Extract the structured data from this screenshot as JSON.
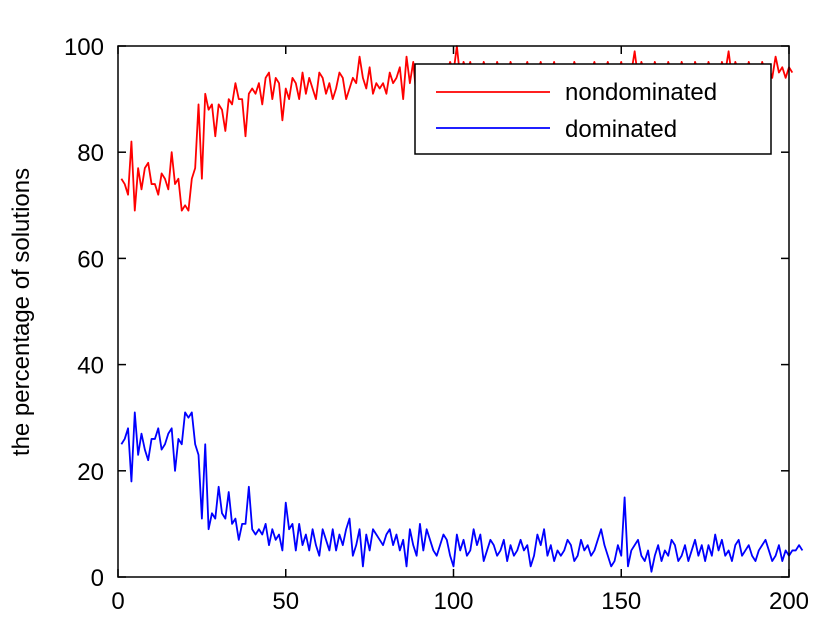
{
  "chart_data": {
    "type": "line",
    "title": "",
    "xlabel": "",
    "ylabel": "the percentage of solutions",
    "xlim": [
      0,
      200
    ],
    "ylim": [
      0,
      100
    ],
    "xticks": [
      0,
      50,
      100,
      150,
      200
    ],
    "yticks": [
      0,
      20,
      40,
      60,
      80,
      100
    ],
    "grid": false,
    "legend_position": "top-right",
    "series": [
      {
        "name": "nondominated",
        "color": "#ff0000",
        "values": [
          75,
          74,
          72,
          82,
          69,
          77,
          73,
          77,
          78,
          74,
          74,
          72,
          76,
          75,
          73,
          80,
          74,
          75,
          69,
          70,
          69,
          75,
          77,
          89,
          75,
          91,
          88,
          89,
          83,
          89,
          88,
          84,
          90,
          89,
          93,
          90,
          90,
          83,
          91,
          92,
          91,
          93,
          89,
          94,
          95,
          90,
          94,
          93,
          86,
          92,
          90,
          94,
          93,
          90,
          95,
          91,
          94,
          92,
          90,
          95,
          94,
          91,
          93,
          90,
          92,
          95,
          94,
          90,
          92,
          94,
          93,
          98,
          94,
          92,
          96,
          91,
          93,
          92,
          93,
          91,
          95,
          93,
          94,
          96,
          90,
          98,
          93,
          97,
          90,
          94,
          95,
          96,
          92,
          96,
          94,
          96,
          92,
          95,
          97,
          95,
          100,
          94,
          97,
          95,
          97,
          93,
          96,
          94,
          97,
          95,
          96,
          93,
          97,
          95,
          96,
          94,
          97,
          95,
          96,
          93,
          95,
          97,
          94,
          96,
          95,
          97,
          94,
          96,
          95,
          97,
          93,
          96,
          95,
          96,
          94,
          97,
          95,
          96,
          92,
          96,
          95,
          97,
          94,
          96,
          95,
          97,
          94,
          96,
          95,
          97,
          93,
          96,
          95,
          99,
          94,
          97,
          95,
          96,
          94,
          97,
          95,
          96,
          93,
          97,
          95,
          96,
          94,
          97,
          95,
          96,
          94,
          97,
          95,
          96,
          94,
          97,
          95,
          96,
          93,
          97,
          95,
          99,
          94,
          97,
          95,
          96,
          94,
          97,
          95,
          96,
          93,
          97,
          95,
          96,
          94,
          98,
          95,
          96,
          94,
          96,
          95
        ]
      },
      {
        "name": "dominated",
        "color": "#0000ff",
        "values": [
          25,
          26,
          28,
          18,
          31,
          23,
          27,
          24,
          22,
          26,
          26,
          28,
          24,
          25,
          27,
          28,
          20,
          26,
          25,
          31,
          30,
          31,
          25,
          23,
          11,
          25,
          9,
          12,
          11,
          17,
          12,
          11,
          16,
          10,
          11,
          7,
          10,
          10,
          17,
          9,
          8,
          9,
          8,
          10,
          6,
          9,
          7,
          8,
          5,
          14,
          9,
          10,
          5,
          10,
          6,
          8,
          5,
          9,
          6,
          4,
          9,
          7,
          5,
          9,
          5,
          8,
          6,
          9,
          11,
          4,
          6,
          9,
          2,
          8,
          5,
          9,
          8,
          7,
          6,
          8,
          9,
          6,
          8,
          5,
          7,
          2,
          9,
          6,
          4,
          10,
          5,
          9,
          7,
          5,
          4,
          6,
          8,
          7,
          4,
          2,
          8,
          5,
          7,
          4,
          5,
          9,
          6,
          8,
          3,
          5,
          7,
          6,
          4,
          5,
          7,
          3,
          6,
          4,
          5,
          7,
          5,
          6,
          2,
          4,
          8,
          6,
          9,
          4,
          6,
          3,
          5,
          4,
          5,
          7,
          6,
          3,
          4,
          7,
          5,
          6,
          4,
          5,
          7,
          9,
          6,
          4,
          2,
          3,
          6,
          4,
          15,
          2,
          5,
          6,
          7,
          4,
          3,
          5,
          1,
          4,
          6,
          3,
          5,
          4,
          7,
          6,
          3,
          4,
          6,
          3,
          5,
          7,
          4,
          6,
          3,
          6,
          4,
          8,
          5,
          7,
          4,
          5,
          3,
          6,
          7,
          4,
          5,
          6,
          4,
          3,
          5,
          6,
          7,
          5,
          3,
          4,
          6,
          3,
          5,
          4,
          5,
          5,
          6,
          5
        ]
      }
    ]
  }
}
